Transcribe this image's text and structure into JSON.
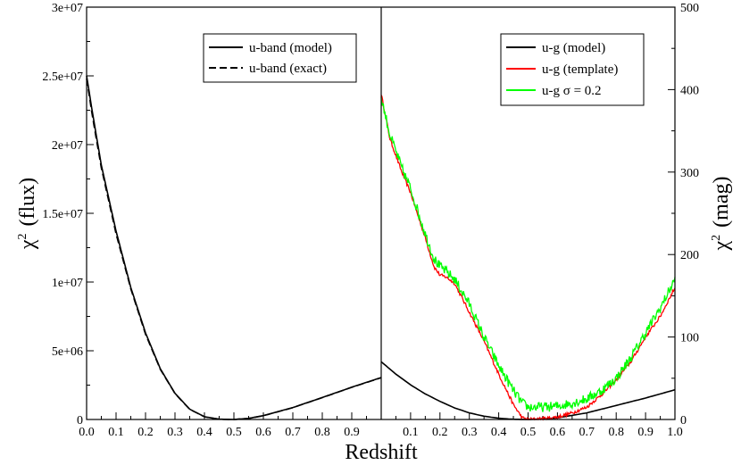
{
  "chart_data": {
    "type": "line",
    "xlabel": "Redshift",
    "panels": [
      {
        "name": "left",
        "ylabel_symbol": "χ",
        "ylabel_sup": "2",
        "ylabel_text": "(flux)",
        "xlim": [
          0.0,
          1.0
        ],
        "ylim": [
          0,
          30000000
        ],
        "x_ticks": [
          "0.0",
          "0.1",
          "0.2",
          "0.3",
          "0.4",
          "0.5",
          "0.6",
          "0.7",
          "0.8",
          "0.9"
        ],
        "x_tick_values": [
          0.0,
          0.1,
          0.2,
          0.3,
          0.4,
          0.5,
          0.6,
          0.7,
          0.8,
          0.9
        ],
        "y_ticks": [
          "0",
          "5e+06",
          "1e+07",
          "1.5e+07",
          "2e+07",
          "2.5e+07",
          "3e+07"
        ],
        "y_tick_values": [
          0,
          5000000,
          10000000,
          15000000,
          20000000,
          25000000,
          30000000
        ],
        "legend": [
          "u-band (model)",
          "u-band (exact)"
        ],
        "series": [
          {
            "name": "u-band (model)",
            "color": "#000000",
            "dash": "solid",
            "x": [
              0.0,
              0.02,
              0.05,
              0.1,
              0.15,
              0.2,
              0.25,
              0.3,
              0.35,
              0.4,
              0.45,
              0.5,
              0.55,
              0.6,
              0.7,
              0.8,
              0.9,
              1.0
            ],
            "y": [
              25000000,
              22300000,
              18500000,
              13700000,
              9600000,
              6300000,
              3700000,
              1900000,
              750000,
              200000,
              20000,
              0,
              80000,
              280000,
              870000,
              1600000,
              2350000,
              3050000
            ]
          },
          {
            "name": "u-band (exact)",
            "color": "#000000",
            "dash": "dashed",
            "x": [
              0.0,
              0.02,
              0.05,
              0.1,
              0.15,
              0.2,
              0.25,
              0.3,
              0.35,
              0.4,
              0.45,
              0.5,
              0.55,
              0.6,
              0.7,
              0.8,
              0.9,
              1.0
            ],
            "y": [
              24800000,
              22000000,
              18300000,
              13500000,
              9500000,
              6200000,
              3650000,
              1880000,
              740000,
              195000,
              18000,
              0,
              78000,
              275000,
              860000,
              1590000,
              2340000,
              3040000
            ]
          }
        ]
      },
      {
        "name": "right",
        "ylabel_symbol": "χ",
        "ylabel_sup": "2",
        "ylabel_text": "(mag)",
        "xlim": [
          0.0,
          1.0
        ],
        "ylim": [
          0,
          500
        ],
        "x_ticks": [
          "0.1",
          "0.2",
          "0.3",
          "0.4",
          "0.5",
          "0.6",
          "0.7",
          "0.8",
          "0.9",
          "1.0"
        ],
        "x_tick_values": [
          0.1,
          0.2,
          0.3,
          0.4,
          0.5,
          0.6,
          0.7,
          0.8,
          0.9,
          1.0
        ],
        "y_ticks": [
          "0",
          "100",
          "200",
          "300",
          "400",
          "500"
        ],
        "y_tick_values": [
          0,
          100,
          200,
          300,
          400,
          500
        ],
        "legend": [
          "u-g (model)",
          "u-g (template)",
          "u-g σ = 0.2"
        ],
        "series": [
          {
            "name": "u-g (model)",
            "color": "#000000",
            "noise": 0,
            "x": [
              0.0,
              0.05,
              0.1,
              0.15,
              0.2,
              0.25,
              0.3,
              0.35,
              0.4,
              0.45,
              0.5,
              0.55,
              0.6,
              0.7,
              0.8,
              0.9,
              1.0
            ],
            "y": [
              70,
              55,
              42,
              31,
              22,
              14,
              8,
              4,
              1.5,
              0.3,
              0,
              0.5,
              2,
              8,
              17,
              26,
              36
            ]
          },
          {
            "name": "u-g (template)",
            "color": "#ff0000",
            "noise": 2,
            "x": [
              0.0,
              0.03,
              0.07,
              0.1,
              0.15,
              0.18,
              0.2,
              0.22,
              0.25,
              0.3,
              0.35,
              0.4,
              0.45,
              0.48,
              0.5,
              0.55,
              0.6,
              0.65,
              0.7,
              0.75,
              0.8,
              0.85,
              0.9,
              0.95,
              1.0
            ],
            "y": [
              395,
              340,
              300,
              275,
              220,
              185,
              175,
              173,
              165,
              130,
              95,
              55,
              18,
              2,
              0,
              1,
              3,
              8,
              15,
              30,
              48,
              70,
              100,
              125,
              160
            ]
          },
          {
            "name": "u-g σ = 0.2",
            "color": "#00ff00",
            "noise": 6,
            "x": [
              0.0,
              0.03,
              0.07,
              0.1,
              0.15,
              0.18,
              0.2,
              0.22,
              0.25,
              0.3,
              0.35,
              0.4,
              0.45,
              0.48,
              0.5,
              0.55,
              0.6,
              0.65,
              0.7,
              0.75,
              0.8,
              0.85,
              0.9,
              0.95,
              1.0
            ],
            "y": [
              390,
              345,
              305,
              280,
              225,
              195,
              185,
              180,
              170,
              140,
              100,
              65,
              35,
              20,
              15,
              15,
              16,
              20,
              25,
              35,
              50,
              75,
              105,
              135,
              170
            ]
          }
        ]
      }
    ]
  }
}
